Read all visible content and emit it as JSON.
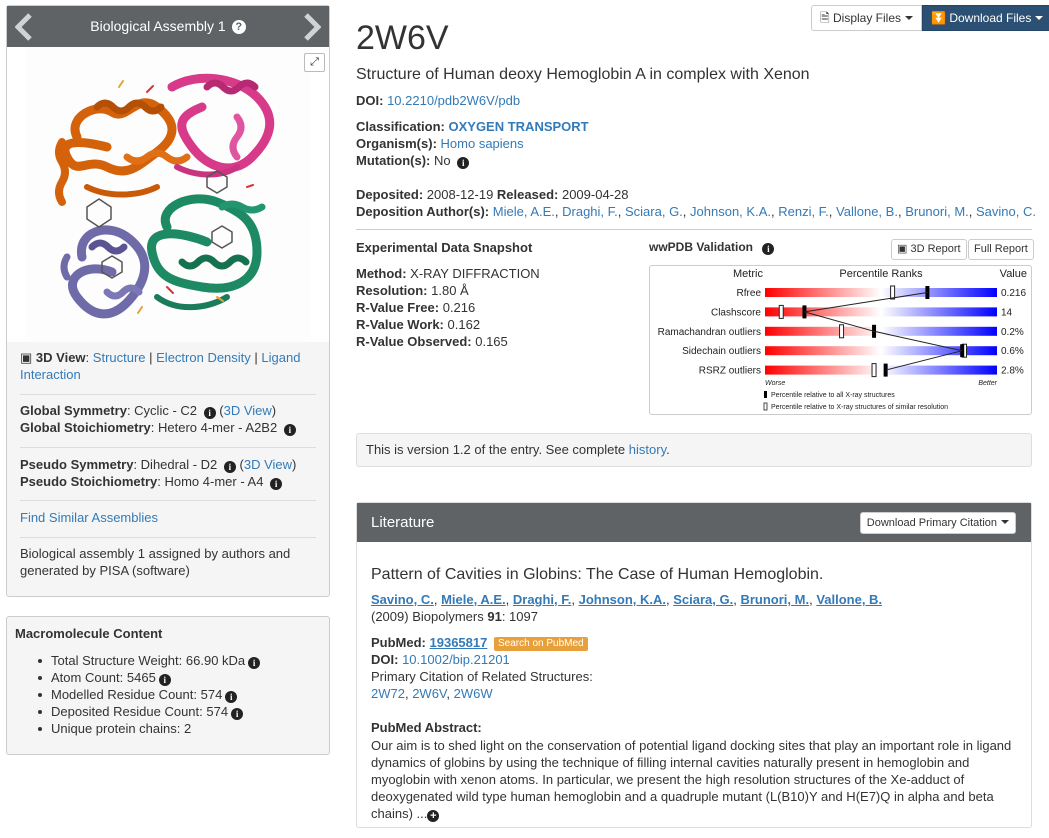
{
  "assembly": {
    "title": "Biological Assembly 1",
    "view3d_label": "3D View",
    "view_links": [
      "Structure",
      "Electron Density",
      "Ligand Interaction"
    ],
    "global_symmetry_label": "Global Symmetry",
    "global_symmetry_value": "Cyclic - C2",
    "view_link": "3D View",
    "global_stoich_label": "Global Stoichiometry",
    "global_stoich_value": "Hetero 4-mer - A2B2",
    "pseudo_symmetry_label": "Pseudo Symmetry",
    "pseudo_symmetry_value": "Dihedral - D2",
    "pseudo_stoich_label": "Pseudo Stoichiometry",
    "pseudo_stoich_value": "Homo 4-mer - A4",
    "find_similar": "Find Similar Assemblies",
    "note": "Biological assembly 1 assigned by authors and generated by PISA (software)"
  },
  "macromolecule": {
    "title": "Macromolecule Content",
    "items": [
      {
        "label": "Total Structure Weight",
        "value": "66.90 kDa",
        "info": true
      },
      {
        "label": "Atom Count",
        "value": "5465",
        "info": true
      },
      {
        "label": "Modelled Residue Count",
        "value": "574",
        "info": true
      },
      {
        "label": "Deposited Residue Count",
        "value": "574",
        "info": true
      },
      {
        "label": "Unique protein chains",
        "value": "2",
        "info": false
      }
    ]
  },
  "toolbar": {
    "display_files": "Display Files",
    "download_files": "Download Files"
  },
  "entry": {
    "id": "2W6V",
    "title": "Structure of Human deoxy Hemoglobin A in complex with Xenon",
    "doi_label": "DOI:",
    "doi": "10.2210/pdb2W6V/pdb",
    "classification_label": "Classification:",
    "classification": "OXYGEN TRANSPORT",
    "organism_label": "Organism(s):",
    "organism": "Homo sapiens",
    "mutation_label": "Mutation(s):",
    "mutation": "No",
    "deposited_label": "Deposited:",
    "deposited": "2008-12-19",
    "released_label": "Released:",
    "released": "2009-04-28",
    "authors_label": "Deposition Author(s):",
    "authors": [
      "Miele, A.E.",
      "Draghi, F.",
      "Sciara, G.",
      "Johnson, K.A.",
      "Renzi, F.",
      "Vallone, B.",
      "Brunori, M.",
      "Savino, C."
    ]
  },
  "snapshot": {
    "title": "Experimental Data Snapshot",
    "rows": [
      {
        "label": "Method:",
        "value": "X-RAY DIFFRACTION",
        "bold_label": false
      },
      {
        "label": "Resolution:",
        "value": "1.80 Å",
        "bold_label": true
      },
      {
        "label": "R-Value Free:",
        "value": "0.216",
        "bold_label": true
      },
      {
        "label": "R-Value Work:",
        "value": "0.162",
        "bold_label": true
      },
      {
        "label": "R-Value Observed:",
        "value": "0.165",
        "bold_label": true
      }
    ]
  },
  "validation": {
    "title": "wwPDB Validation",
    "btn_3d": "3D Report",
    "btn_full": "Full Report",
    "col_metric": "Metric",
    "col_percentile": "Percentile Ranks",
    "col_value": "Value",
    "worse": "Worse",
    "better": "Better",
    "legend_all": "Percentile relative to all X-ray structures",
    "legend_similar": "Percentile relative to X-ray structures of similar resolution",
    "metrics": [
      {
        "name": "Rfree",
        "value": "0.216",
        "pct_all": 0.7,
        "pct_similar": 0.55
      },
      {
        "name": "Clashscore",
        "value": "14",
        "pct_all": 0.17,
        "pct_similar": 0.07
      },
      {
        "name": "Ramachandran outliers",
        "value": "0.2%",
        "pct_all": 0.47,
        "pct_similar": 0.33
      },
      {
        "name": "Sidechain outliers",
        "value": "0.6%",
        "pct_all": 0.85,
        "pct_similar": 0.86
      },
      {
        "name": "RSRZ outliers",
        "value": "2.8%",
        "pct_all": 0.52,
        "pct_similar": 0.47
      }
    ]
  },
  "version": {
    "text": "This is version 1.2 of the entry. See complete",
    "link": "history",
    "end": "."
  },
  "literature": {
    "title": "Literature",
    "download_citation": "Download Primary Citation",
    "cite_title": "Pattern of Cavities in Globins: The Case of Human Hemoglobin.",
    "authors": [
      "Savino, C.",
      "Miele, A.E.",
      "Draghi, F.",
      "Johnson, K.A.",
      "Sciara, G.",
      "Brunori, M.",
      "Vallone, B."
    ],
    "journal_pre": "(2009) Biopolymers",
    "volume": "91",
    "pages": ": 1097",
    "pubmed_label": "PubMed:",
    "pubmed_id": "19365817",
    "pubmed_badge": "Search on PubMed",
    "doi_label": "DOI:",
    "doi": "10.1002/bip.21201",
    "related_label": "Primary Citation of Related Structures:",
    "related": [
      "2W72",
      "2W6V",
      "2W6W"
    ],
    "abstract_label": "PubMed Abstract:",
    "abstract": "Our aim is to shed light on the conservation of potential ligand docking sites that play an important role in ligand dynamics of globins by using the technique of filling internal cavities naturally present in hemoglobin and myoglobin with xenon atoms. In particular, we present the high resolution structures of the Xe-adduct of deoxygenated wild type human hemoglobin and a quadruple mutant (L(B10)Y and H(E7)Q in alpha and beta chains) ..."
  }
}
